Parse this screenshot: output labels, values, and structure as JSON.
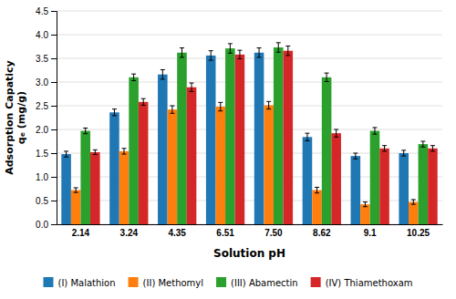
{
  "chart_data": {
    "type": "bar",
    "categories": [
      "2.14",
      "3.24",
      "4.35",
      "6.51",
      "7.50",
      "8.62",
      "9.1",
      "10.25"
    ],
    "series": [
      {
        "name": "(I) Malathion",
        "values": [
          1.48,
          2.36,
          3.16,
          3.56,
          3.62,
          1.84,
          1.44,
          1.5
        ],
        "errors": [
          0.06,
          0.07,
          0.1,
          0.1,
          0.1,
          0.08,
          0.06,
          0.06
        ]
      },
      {
        "name": "(II) Methomyl",
        "values": [
          0.72,
          1.54,
          2.42,
          2.48,
          2.51,
          0.72,
          0.42,
          0.47
        ],
        "errors": [
          0.05,
          0.06,
          0.08,
          0.09,
          0.08,
          0.06,
          0.05,
          0.05
        ]
      },
      {
        "name": "(III) Abamectin",
        "values": [
          1.97,
          3.1,
          3.62,
          3.71,
          3.73,
          3.1,
          1.97,
          1.69
        ],
        "errors": [
          0.06,
          0.07,
          0.1,
          0.1,
          0.1,
          0.09,
          0.07,
          0.06
        ]
      },
      {
        "name": "(IV) Thiamethoxam",
        "values": [
          1.52,
          2.58,
          2.89,
          3.58,
          3.66,
          1.92,
          1.6,
          1.6
        ],
        "errors": [
          0.05,
          0.07,
          0.09,
          0.09,
          0.1,
          0.08,
          0.06,
          0.06
        ]
      }
    ],
    "xlabel": "Solution pH",
    "ylabel": [
      "Adsorption Capaticy",
      "qₑ (mg/g)"
    ],
    "ylim": [
      0,
      4.5
    ],
    "yticks": [
      {
        "value": 0,
        "label": "0.0"
      },
      0.5,
      {
        "value": 1,
        "label": "1.0"
      },
      1.5,
      {
        "value": 2,
        "label": "2.0"
      },
      2.5,
      {
        "value": 3,
        "label": "3.0"
      },
      3.5,
      {
        "value": 4,
        "label": "4.0"
      },
      4.5
    ],
    "grid": true,
    "legend": "bottom"
  }
}
